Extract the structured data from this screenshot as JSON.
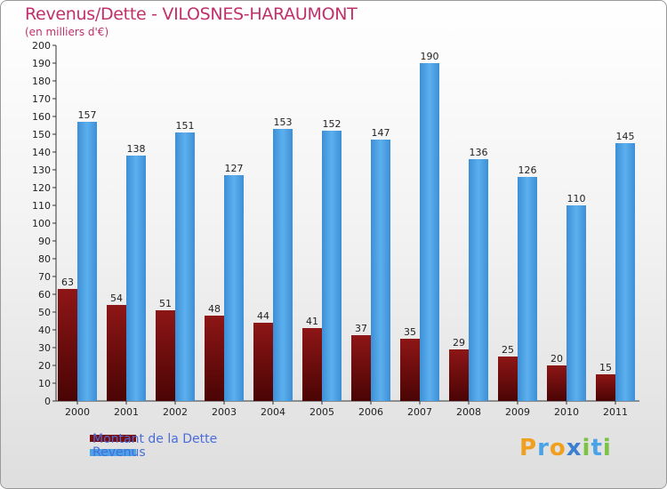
{
  "title": "Revenus/Dette - VILOSNES-HARAUMONT",
  "subtitle": "(en milliers d'€)",
  "colors": {
    "dette": "#7a0c0c",
    "revenus": "#4aa3e6",
    "title": "#c0306a",
    "legend_text": "#4a6cd8"
  },
  "legend": [
    {
      "label": "Montant de la Dette",
      "color": "#7a0c0c"
    },
    {
      "label": "Revenus",
      "color": "#4aa3e6"
    }
  ],
  "logo": {
    "text": "Proxiti",
    "letters": [
      "P",
      "r",
      "o",
      "x",
      "i",
      "t",
      "i"
    ],
    "colors": [
      "#f0a020",
      "#4aa3e6",
      "#f0a020",
      "#3a7fd0",
      "#7cc243",
      "#4aa3e6",
      "#7cc243"
    ]
  },
  "chart_data": {
    "type": "bar",
    "categories": [
      "2000",
      "2001",
      "2002",
      "2003",
      "2004",
      "2005",
      "2006",
      "2007",
      "2008",
      "2009",
      "2010",
      "2011"
    ],
    "series": [
      {
        "name": "Montant de la Dette",
        "values": [
          63,
          54,
          51,
          48,
          44,
          41,
          37,
          35,
          29,
          25,
          20,
          15
        ]
      },
      {
        "name": "Revenus",
        "values": [
          157,
          138,
          151,
          127,
          153,
          152,
          147,
          190,
          136,
          126,
          110,
          145
        ]
      }
    ],
    "yticks": [
      0,
      10,
      20,
      30,
      40,
      50,
      60,
      70,
      80,
      90,
      100,
      110,
      120,
      130,
      140,
      150,
      160,
      170,
      180,
      190,
      200
    ],
    "ylim": [
      0,
      200
    ],
    "xlabel": "",
    "ylabel": "",
    "grid": false,
    "legend_position": "bottom-left"
  }
}
